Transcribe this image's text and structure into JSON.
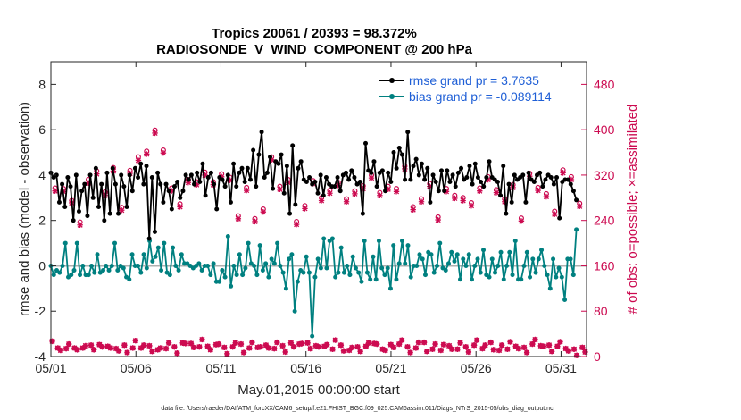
{
  "chart_data": {
    "type": "line",
    "title": "Tropics 20061 / 20393 = 98.372%",
    "subtitle": "RADIOSONDE_V_WIND_COMPONENT @ 200 hPa",
    "xlabel": "May.01,2015 00:00:00 start",
    "ylabel": "rmse and bias (model - observation)",
    "ylabel_right": "# of obs: o=possible; ×=assimilated",
    "footer": "data file: /Users/raeder/DAI/ATM_forcXX/CAM6_setup/f.e21.FHIST_BGC.f09_025.CAM6assim.011/Diags_NTrS_2015-05/obs_diag_output.nc",
    "xlim": [
      0,
      31.5
    ],
    "ylim": [
      -4,
      9
    ],
    "ylim_right": [
      0,
      520
    ],
    "x_ticks": [
      0,
      5,
      10,
      15,
      20,
      25,
      30
    ],
    "x_tick_labels": [
      "05/01",
      "05/06",
      "05/11",
      "05/16",
      "05/21",
      "05/26",
      "05/31"
    ],
    "y_ticks": [
      -4,
      -2,
      0,
      2,
      4,
      6,
      8
    ],
    "y_tick_labels": [
      "-4",
      "-2",
      "0",
      "2",
      "4",
      "6",
      "8"
    ],
    "y_right_ticks": [
      0,
      80,
      160,
      240,
      320,
      400,
      480
    ],
    "y_right_tick_labels": [
      "0",
      "80",
      "160",
      "240",
      "320",
      "400",
      "480"
    ],
    "zero_line": 0,
    "colors": {
      "rmse": "#000000",
      "bias": "#008080",
      "obs": "#cc0a50",
      "zero": "#b0b0b0",
      "legend_text": "#1f5fd6"
    },
    "legend": [
      {
        "name": "rmse",
        "label": "rmse grand pr = 3.7635"
      },
      {
        "name": "bias",
        "label": "bias grand pr = -0.089114"
      }
    ],
    "series": [
      {
        "name": "rmse",
        "axis": "left",
        "values": [
          4.1,
          3.9,
          4.0,
          2.8,
          3.6,
          2.6,
          3.9,
          3.5,
          2.0,
          4.0,
          2.4,
          3.3,
          3.6,
          2.2,
          4.0,
          3.0,
          4.3,
          2.6,
          3.6,
          2.0,
          4.1,
          2.3,
          4.3,
          3.6,
          2.3,
          4.0,
          3.5,
          2.6,
          4.0,
          3.3,
          4.3,
          3.9,
          4.5,
          3.6,
          4.4,
          1.2,
          3.9,
          1.5,
          4.1,
          3.6,
          2.8,
          3.6,
          3.3,
          2.5,
          3.5,
          3.7,
          3.0,
          3.3,
          4.0,
          3.8,
          4.0,
          3.6,
          4.1,
          3.7,
          4.5,
          3.1,
          3.9,
          4.1,
          3.6,
          2.5,
          3.9,
          3.8,
          3.5,
          4.0,
          2.8,
          4.5,
          3.5,
          4.1,
          4.3,
          3.7,
          4.3,
          3.8,
          5.1,
          3.5,
          4.9,
          5.9,
          3.9,
          4.1,
          4.8,
          3.4,
          4.6,
          4.5,
          4.9,
          3.2,
          4.4,
          2.3,
          5.3,
          2.7,
          4.3,
          4.6,
          3.8,
          3.7,
          3.9,
          3.6,
          3.7,
          3.2,
          4.0,
          3.1,
          3.9,
          3.6,
          3.5,
          3.5,
          3.9,
          3.3,
          4.0,
          4.1,
          3.8,
          4.2,
          3.9,
          3.6,
          3.7,
          2.3,
          5.4,
          4.2,
          4.1,
          4.6,
          3.5,
          4.1,
          4.2,
          3.3,
          4.1,
          3.7,
          5.0,
          4.3,
          5.2,
          4.9,
          3.8,
          5.9,
          3.8,
          4.4,
          4.7,
          4.0,
          4.5,
          3.8,
          4.3,
          2.8,
          4.0,
          3.7,
          3.3,
          4.2,
          3.3,
          4.2,
          3.7,
          4.0,
          3.5,
          4.1,
          4.3,
          3.8,
          3.9,
          4.4,
          3.6,
          4.5,
          3.9,
          3.7,
          3.5,
          3.9,
          4.6,
          3.9,
          3.8,
          3.7,
          3.1,
          4.4,
          2.3,
          3.6,
          2.8,
          4.0,
          3.8,
          3.9,
          4.0,
          2.8,
          4.1,
          3.8,
          3.7,
          4.0,
          4.1,
          3.5,
          3.8,
          4.0,
          3.9,
          3.6,
          3.9,
          2.1,
          3.7,
          3.8,
          3.8,
          3.6,
          3.3,
          2.9
        ]
      },
      {
        "name": "bias",
        "axis": "left",
        "values": [
          0.0,
          -0.4,
          -0.2,
          -0.3,
          0.0,
          1.0,
          -0.5,
          -0.4,
          -0.2,
          1.0,
          -0.4,
          0.0,
          -0.4,
          -0.4,
          0.0,
          -0.3,
          0.5,
          -0.3,
          -0.2,
          0.0,
          -0.2,
          0.0,
          1.0,
          -0.2,
          0.0,
          -0.1,
          -0.5,
          -0.6,
          0.5,
          0.0,
          0.0,
          -0.3,
          0.5,
          -0.1,
          1.1,
          0.2,
          0.4,
          0.8,
          -0.2,
          1.0,
          -0.3,
          -0.4,
          0.8,
          0.0,
          -0.2,
          0.5,
          0.1,
          0.1,
          0.0,
          -0.1,
          0.0,
          0.1,
          -0.2,
          0.0,
          0.0,
          -0.4,
          0.1,
          -0.7,
          -0.7,
          -0.2,
          -0.5,
          1.3,
          -0.9,
          0.0,
          -0.4,
          0.5,
          -0.4,
          -0.1,
          1.0,
          0.1,
          0.0,
          -0.4,
          0.9,
          -0.2,
          0.1,
          -0.5,
          0.3,
          0.1,
          1.0,
          0.0,
          -0.3,
          -1.0,
          0.3,
          0.5,
          -2.0,
          -0.7,
          -0.2,
          -0.3,
          0.4,
          -0.3,
          -3.1,
          -0.5,
          0.3,
          -0.1,
          1.2,
          -0.1,
          1.1,
          1.2,
          -0.5,
          -0.3,
          0.8,
          -0.3,
          0.0,
          -0.4,
          0.4,
          -0.1,
          -0.3,
          -0.7,
          1.1,
          -0.3,
          -0.6,
          0.4,
          -0.6,
          1.1,
          -0.1,
          -0.4,
          -0.1,
          -1.0,
          0.9,
          -0.6,
          0.1,
          1.1,
          0.1,
          0.9,
          -0.5,
          0.0,
          0.0,
          0.5,
          0.3,
          -0.4,
          0.6,
          0.5,
          -0.3,
          0.0,
          1.0,
          -0.1,
          -0.2,
          0.1,
          0.6,
          0.2,
          0.5,
          -0.6,
          0.3,
          0.0,
          0.5,
          -0.6,
          0.0,
          0.3,
          -0.3,
          0.7,
          -0.4,
          -0.5,
          0.3,
          -0.3,
          0.0,
          0.6,
          -0.6,
          0.0,
          0.6,
          -0.4,
          1.1,
          -0.6,
          -0.6,
          0.0,
          0.6,
          -0.5,
          0.3,
          -0.3,
          0.3,
          0.7,
          0.0,
          -0.4,
          -1.0,
          0.3,
          -0.5,
          -0.1,
          -0.5,
          -1.5,
          0.3,
          0.3,
          -0.4,
          1.6
        ]
      },
      {
        "name": "obs_possible",
        "axis": "right",
        "marker": "o",
        "values": [
          27,
          297,
          15,
          11,
          296,
          14,
          22,
          275,
          15,
          12,
          237,
          15,
          19,
          312,
          20,
          12,
          327,
          21,
          17,
          290,
          18,
          15,
          333,
          14,
          10,
          263,
          20,
          7,
          328,
          15,
          28,
          352,
          15,
          20,
          362,
          19,
          9,
          399,
          12,
          15,
          364,
          14,
          24,
          297,
          17,
          6,
          269,
          24,
          23,
          312,
          23,
          16,
          308,
          17,
          30,
          325,
          18,
          12,
          308,
          21,
          22,
          322,
          16,
          5,
          316,
          17,
          24,
          248,
          22,
          7,
          298,
          15,
          25,
          243,
          16,
          17,
          260,
          20,
          15,
          352,
          14,
          25,
          300,
          19,
          8,
          312,
          24,
          17,
          238,
          22,
          23,
          266,
          24,
          14,
          310,
          19,
          17,
          280,
          18,
          21,
          293,
          13,
          29,
          307,
          20,
          10,
          278,
          11,
          16,
          292,
          17,
          9,
          301,
          18,
          24,
          320,
          23,
          22,
          289,
          13,
          11,
          300,
          21,
          16,
          296,
          22,
          29,
          336,
          17,
          7,
          264,
          15,
          25,
          278,
          25,
          9,
          305,
          13,
          22,
          246,
          11,
          21,
          296,
          19,
          13,
          284,
          13,
          24,
          280,
          17,
          8,
          271,
          20,
          29,
          297,
          14,
          20,
          317,
          25,
          12,
          294,
          11,
          20,
          278,
          13,
          26,
          303,
          18,
          14,
          244,
          16,
          7,
          323,
          22,
          30,
          298,
          19,
          18,
          287,
          20,
          9,
          256,
          18,
          26,
          329,
          14,
          10,
          317,
          13,
          2,
          270,
          16,
          8
        ]
      },
      {
        "name": "obs_assimilated",
        "axis": "right",
        "marker": "x",
        "values": [
          27,
          292,
          15,
          11,
          291,
          14,
          22,
          271,
          15,
          12,
          232,
          15,
          19,
          306,
          20,
          12,
          322,
          21,
          17,
          284,
          18,
          15,
          327,
          14,
          10,
          258,
          20,
          7,
          323,
          15,
          28,
          346,
          15,
          20,
          357,
          19,
          9,
          394,
          12,
          15,
          359,
          14,
          24,
          292,
          17,
          6,
          264,
          24,
          23,
          307,
          23,
          16,
          303,
          17,
          30,
          320,
          18,
          12,
          303,
          21,
          22,
          317,
          16,
          5,
          311,
          17,
          24,
          243,
          22,
          7,
          293,
          15,
          25,
          238,
          16,
          17,
          255,
          20,
          15,
          347,
          14,
          25,
          295,
          19,
          8,
          307,
          24,
          17,
          233,
          22,
          23,
          261,
          24,
          14,
          305,
          19,
          17,
          275,
          18,
          21,
          288,
          13,
          29,
          302,
          20,
          10,
          273,
          11,
          16,
          287,
          17,
          9,
          296,
          18,
          24,
          315,
          23,
          22,
          284,
          13,
          11,
          295,
          21,
          16,
          291,
          22,
          29,
          331,
          17,
          7,
          259,
          15,
          25,
          273,
          25,
          9,
          300,
          13,
          22,
          241,
          11,
          21,
          291,
          19,
          13,
          279,
          13,
          24,
          275,
          17,
          8,
          266,
          20,
          29,
          292,
          14,
          20,
          312,
          25,
          12,
          289,
          11,
          20,
          273,
          13,
          26,
          298,
          18,
          14,
          239,
          16,
          7,
          318,
          22,
          30,
          293,
          19,
          18,
          282,
          20,
          9,
          251,
          18,
          26,
          324,
          14,
          10,
          312,
          13,
          2,
          265,
          16,
          8
        ]
      }
    ]
  }
}
